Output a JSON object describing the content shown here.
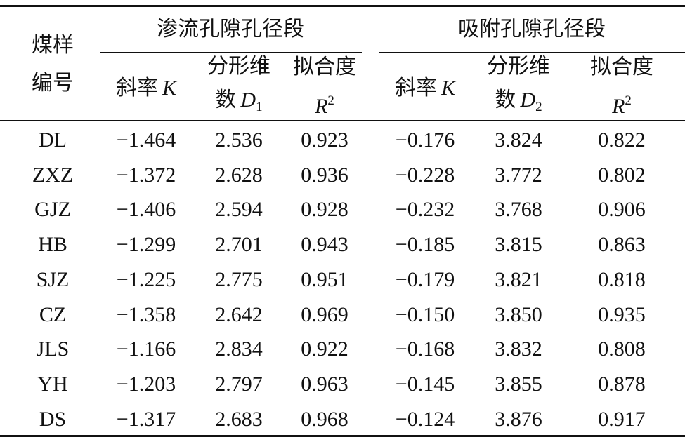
{
  "table": {
    "row_header": [
      "煤样",
      "编号"
    ],
    "groups": [
      {
        "title": "渗流孔隙孔径段",
        "columns": [
          {
            "lines": [
              [
                {
                  "text": "斜率"
                },
                {
                  "text": "K",
                  "style": "italic"
                }
              ]
            ]
          },
          {
            "lines": [
              [
                {
                  "text": "分形维"
                }
              ],
              [
                {
                  "text": "数"
                },
                {
                  "text": "D",
                  "style": "italic"
                },
                {
                  "text": "1",
                  "style": "sub"
                }
              ]
            ]
          },
          {
            "lines": [
              [
                {
                  "text": "拟合度"
                }
              ],
              [
                {
                  "text": "R",
                  "style": "italic"
                },
                {
                  "text": "2",
                  "style": "sup"
                }
              ]
            ]
          }
        ]
      },
      {
        "title": "吸附孔隙孔径段",
        "columns": [
          {
            "lines": [
              [
                {
                  "text": "斜率"
                },
                {
                  "text": "K",
                  "style": "italic"
                }
              ]
            ]
          },
          {
            "lines": [
              [
                {
                  "text": "分形维"
                }
              ],
              [
                {
                  "text": "数"
                },
                {
                  "text": "D",
                  "style": "italic"
                },
                {
                  "text": "2",
                  "style": "sub"
                }
              ]
            ]
          },
          {
            "lines": [
              [
                {
                  "text": "拟合度"
                }
              ],
              [
                {
                  "text": "R",
                  "style": "italic"
                },
                {
                  "text": "2",
                  "style": "sup"
                }
              ]
            ]
          }
        ]
      }
    ],
    "rows": [
      [
        "DL",
        "−1.464",
        "2.536",
        "0.923",
        "−0.176",
        "3.824",
        "0.822"
      ],
      [
        "ZXZ",
        "−1.372",
        "2.628",
        "0.936",
        "−0.228",
        "3.772",
        "0.802"
      ],
      [
        "GJZ",
        "−1.406",
        "2.594",
        "0.928",
        "−0.232",
        "3.768",
        "0.906"
      ],
      [
        "HB",
        "−1.299",
        "2.701",
        "0.943",
        "−0.185",
        "3.815",
        "0.863"
      ],
      [
        "SJZ",
        "−1.225",
        "2.775",
        "0.951",
        "−0.179",
        "3.821",
        "0.818"
      ],
      [
        "CZ",
        "−1.358",
        "2.642",
        "0.969",
        "−0.150",
        "3.850",
        "0.935"
      ],
      [
        "JLS",
        "−1.166",
        "2.834",
        "0.922",
        "−0.168",
        "3.832",
        "0.808"
      ],
      [
        "YH",
        "−1.203",
        "2.797",
        "0.963",
        "−0.145",
        "3.855",
        "0.878"
      ],
      [
        "DS",
        "−1.317",
        "2.683",
        "0.968",
        "−0.124",
        "3.876",
        "0.917"
      ]
    ]
  }
}
